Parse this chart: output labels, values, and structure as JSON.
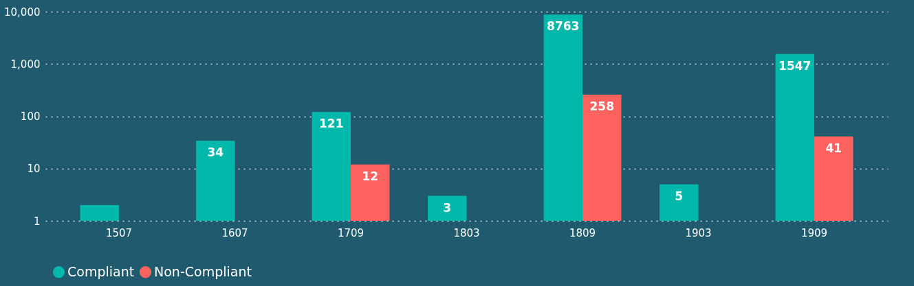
{
  "chart_data": {
    "type": "bar",
    "categories": [
      "1507",
      "1607",
      "1709",
      "1803",
      "1809",
      "1903",
      "1909"
    ],
    "series": [
      {
        "name": "Compliant",
        "color": "#01b8aa",
        "values": [
          2,
          34,
          121,
          3,
          8763,
          5,
          1547
        ],
        "value_labels": [
          null,
          "34",
          "121",
          "3",
          "8763",
          "5",
          "1547"
        ]
      },
      {
        "name": "Non-Compliant",
        "color": "#fd625e",
        "values": [
          null,
          null,
          12,
          null,
          258,
          null,
          41
        ],
        "value_labels": [
          null,
          null,
          "12",
          null,
          "258",
          null,
          "41"
        ]
      }
    ],
    "log": true,
    "ylim": [
      1,
      10000
    ],
    "yticks": [
      1,
      10,
      100,
      {
        "value": 1000,
        "label": "1,000"
      },
      {
        "value": 10000,
        "label": "10,000"
      }
    ],
    "grid": "y",
    "legend": "bottom"
  }
}
